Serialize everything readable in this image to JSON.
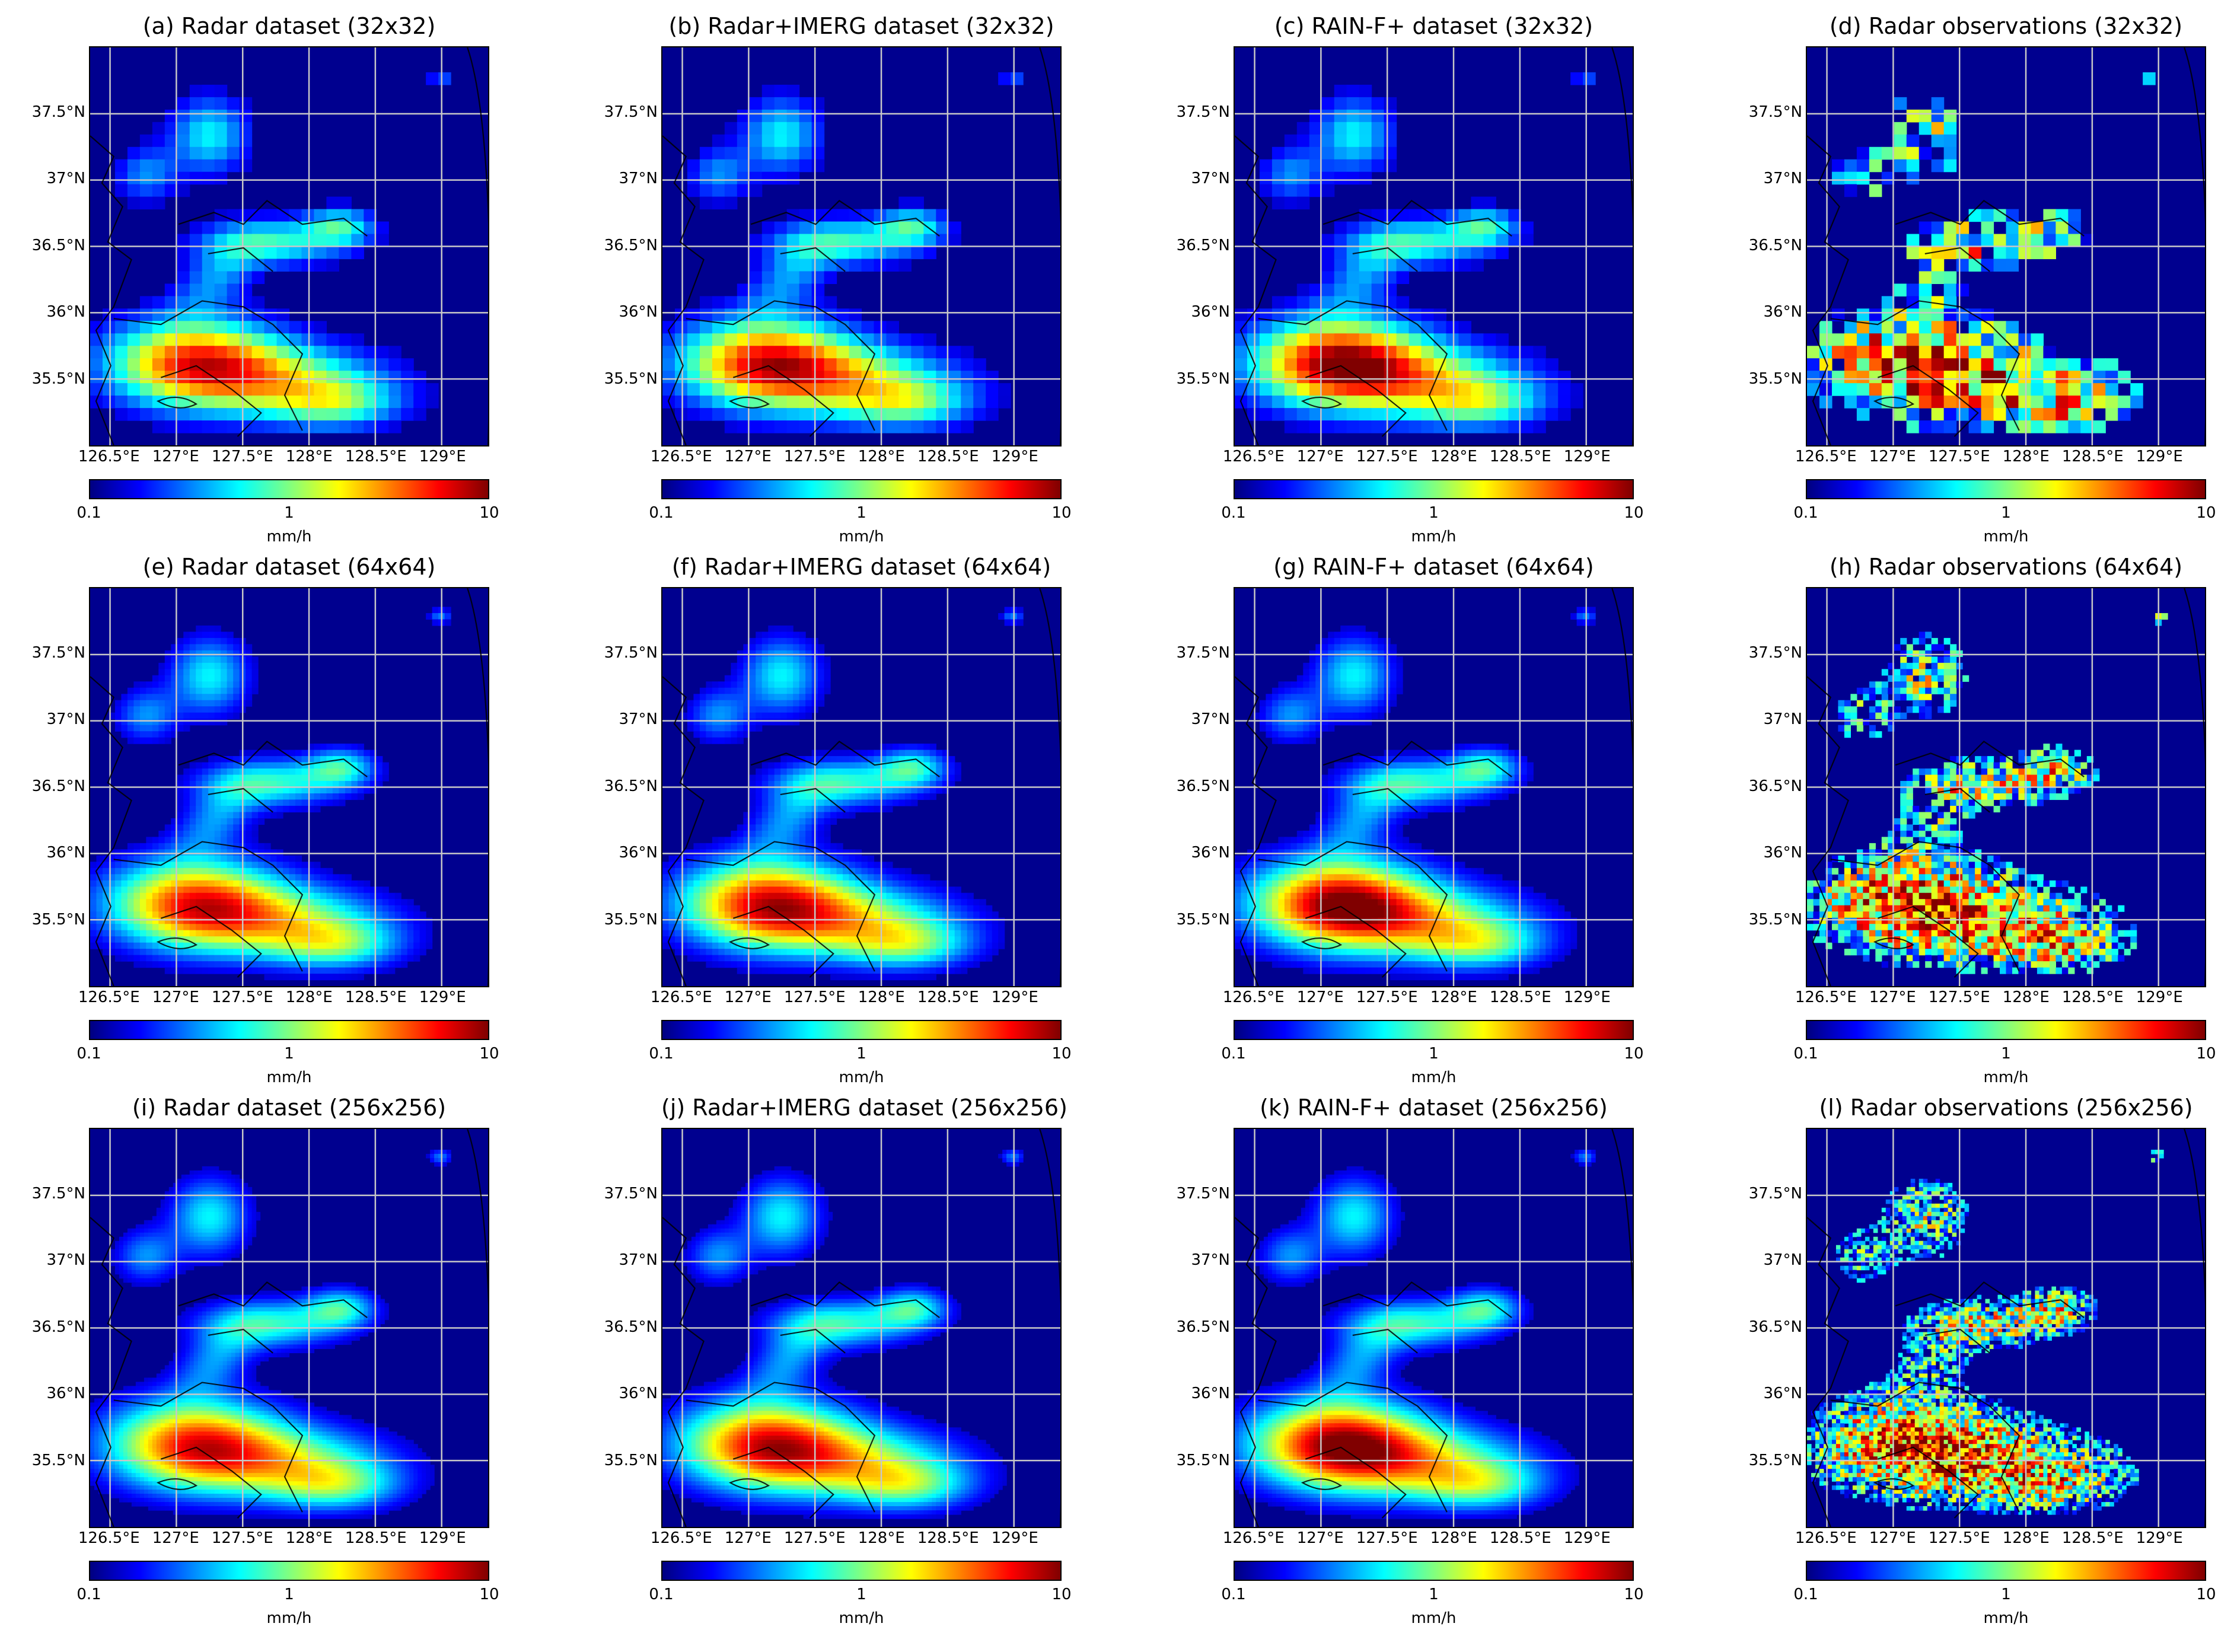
{
  "chart_data": [
    {
      "type": "heatmap",
      "title": "(a) Radar dataset (32x32)",
      "grid": 32,
      "kind": "model",
      "variant": 1
    },
    {
      "type": "heatmap",
      "title": "(b) Radar+IMERG dataset (32x32)",
      "grid": 32,
      "kind": "model",
      "variant": 2
    },
    {
      "type": "heatmap",
      "title": "(c) RAIN-F+ dataset (32x32)",
      "grid": 32,
      "kind": "model",
      "variant": 3
    },
    {
      "type": "heatmap",
      "title": "(d) Radar observations (32x32)",
      "grid": 32,
      "kind": "obs",
      "variant": 4
    },
    {
      "type": "heatmap",
      "title": "(e) Radar dataset (64x64)",
      "grid": 64,
      "kind": "model",
      "variant": 1
    },
    {
      "type": "heatmap",
      "title": "(f) Radar+IMERG dataset (64x64)",
      "grid": 64,
      "kind": "model",
      "variant": 2
    },
    {
      "type": "heatmap",
      "title": "(g) RAIN-F+ dataset (64x64)",
      "grid": 64,
      "kind": "model",
      "variant": 3
    },
    {
      "type": "heatmap",
      "title": "(h) Radar observations (64x64)",
      "grid": 64,
      "kind": "obs",
      "variant": 4
    },
    {
      "type": "heatmap",
      "title": "(i) Radar dataset (256x256)",
      "grid": 96,
      "kind": "model",
      "variant": 1
    },
    {
      "type": "heatmap",
      "title": "(j) Radar+IMERG dataset (256x256)",
      "grid": 96,
      "kind": "model",
      "variant": 2
    },
    {
      "type": "heatmap",
      "title": "(k) RAIN-F+ dataset (256x256)",
      "grid": 96,
      "kind": "model",
      "variant": 3
    },
    {
      "type": "heatmap",
      "title": "(l) Radar observations (256x256)",
      "grid": 96,
      "kind": "obs",
      "variant": 4
    }
  ],
  "axes": {
    "lat_ticks": [
      "37.5°N",
      "37°N",
      "36.5°N",
      "36°N",
      "35.5°N"
    ],
    "lat_values": [
      37.5,
      37.0,
      36.5,
      36.0,
      35.5
    ],
    "lon_ticks": [
      "126.5°E",
      "127°E",
      "127.5°E",
      "128°E",
      "128.5°E",
      "129°E"
    ],
    "lon_values": [
      126.5,
      127.0,
      127.5,
      128.0,
      128.5,
      129.0
    ],
    "lon_range": [
      126.35,
      129.35
    ],
    "lat_range": [
      35.0,
      38.0
    ],
    "grid": true
  },
  "colorbar": {
    "colormap": "jet",
    "scale": "log",
    "range": [
      0.1,
      10
    ],
    "ticks": [
      "0.1",
      "1",
      "10"
    ],
    "unit": "mm/h"
  },
  "colors": {
    "background_rain": "#00008f",
    "gridline": "#c8c8c8",
    "coastline": "#000000"
  }
}
